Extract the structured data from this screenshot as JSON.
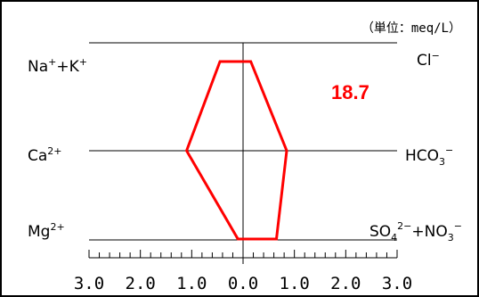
{
  "chart_data": {
    "type": "hexadiagram",
    "unit_label": "（単位：meq/L）",
    "value_label": "18.7",
    "value_color": "#ff0000",
    "polygon_color": "#ff0000",
    "x_range": [
      -3,
      3
    ],
    "tick_labels": [
      "3.0",
      "2.0",
      "1.0",
      "0.0",
      "1.0",
      "2.0",
      "3.0"
    ],
    "rows": [
      {
        "cation": {
          "main": "Na",
          "sup1": "+",
          "mid": "+K",
          "sup2": "+"
        },
        "anion": {
          "main": "Cl",
          "sup": "−"
        },
        "cation_value": 0.45,
        "anion_value": 0.15
      },
      {
        "cation": {
          "main": "Ca",
          "sup": "2+"
        },
        "anion": {
          "main": "HCO",
          "sub": "3",
          "sup": "−"
        },
        "cation_value": 1.1,
        "anion_value": 0.85
      },
      {
        "cation": {
          "main": "Mg",
          "sup": "2+"
        },
        "anion": {
          "main": "SO",
          "sub": "4",
          "sup": "2−",
          "mid": "+NO",
          "sub2": "3",
          "sup2": "−"
        },
        "cation_value": 0.1,
        "anion_value": 0.65
      }
    ]
  }
}
